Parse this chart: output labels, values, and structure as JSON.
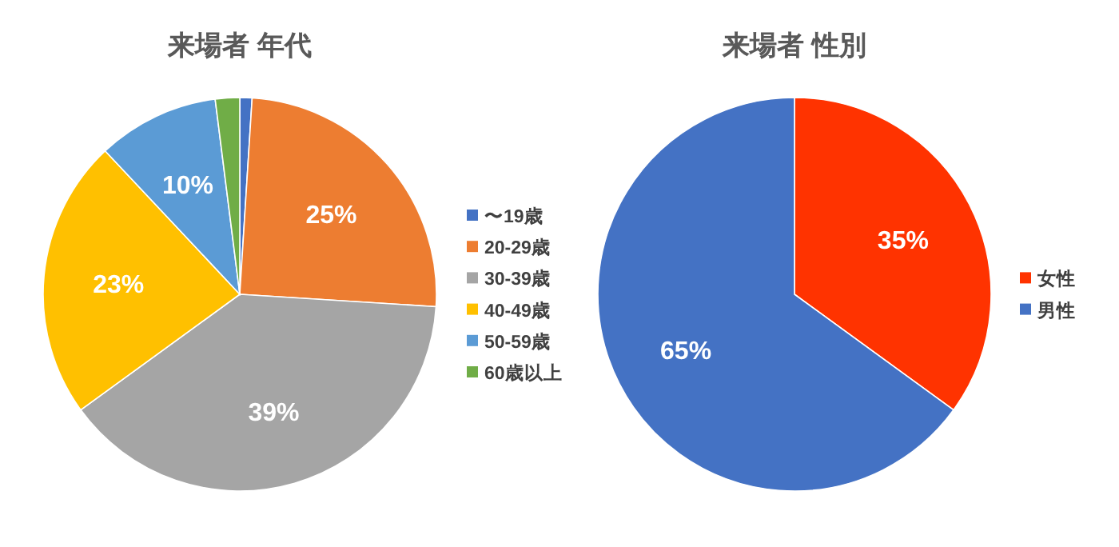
{
  "chart_data": [
    {
      "type": "pie",
      "title": "来場者 年代",
      "categories": [
        "〜19歳",
        "20-29歳",
        "30-39歳",
        "40-49歳",
        "50-59歳",
        "60歳以上"
      ],
      "values": [
        1,
        25,
        39,
        23,
        10,
        2
      ],
      "colors": [
        "#4472c4",
        "#ed7d31",
        "#a5a5a5",
        "#ffc000",
        "#5b9bd5",
        "#70ad47"
      ],
      "value_labels": [
        null,
        "25%",
        "39%",
        "23%",
        "10%",
        null
      ],
      "legend": "right"
    },
    {
      "type": "pie",
      "title": "来場者 性別",
      "categories": [
        "女性",
        "男性"
      ],
      "values": [
        35,
        65
      ],
      "colors": [
        "#ff3300",
        "#4472c4"
      ],
      "value_labels": [
        "35%",
        "65%"
      ],
      "legend": "right"
    }
  ]
}
